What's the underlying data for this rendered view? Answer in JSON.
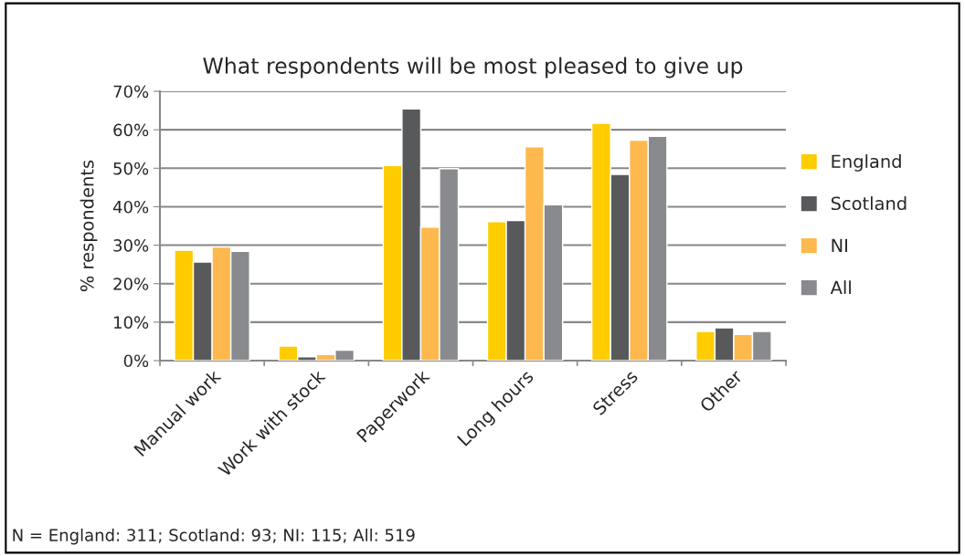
{
  "chart_data": {
    "type": "bar",
    "title": "What respondents will be most pleased to give up",
    "ylabel": "% respondents",
    "categories": [
      "Manual work",
      "Work with stock",
      "Paperwork",
      "Long hours",
      "Stress",
      "Other"
    ],
    "series": [
      {
        "name": "England",
        "color": "#ffcc00",
        "values": [
          28.7,
          3.8,
          50.7,
          36.1,
          61.7,
          7.6
        ]
      },
      {
        "name": "Scotland",
        "color": "#58595b",
        "values": [
          25.6,
          1.0,
          65.4,
          36.4,
          48.4,
          8.5
        ]
      },
      {
        "name": "NI",
        "color": "#fdb94d",
        "values": [
          29.5,
          1.6,
          34.7,
          55.6,
          57.3,
          6.8
        ]
      },
      {
        "name": "All",
        "color": "#898a8d",
        "values": [
          28.4,
          2.7,
          49.9,
          40.5,
          58.3,
          7.6
        ]
      }
    ],
    "ylim": [
      0,
      70
    ],
    "yticks": [
      {
        "value": 0,
        "label": "0%"
      },
      {
        "value": 10,
        "label": "10%"
      },
      {
        "value": 20,
        "label": "20%"
      },
      {
        "value": 30,
        "label": "30%"
      },
      {
        "value": 40,
        "label": "40%"
      },
      {
        "value": 50,
        "label": "50%"
      },
      {
        "value": 60,
        "label": "60%"
      },
      {
        "value": 70,
        "label": "70%"
      }
    ],
    "grid": "y",
    "legend": "right",
    "annotations": [
      "N = England: 311; Scotland: 93; NI: 115; All: 519"
    ]
  }
}
